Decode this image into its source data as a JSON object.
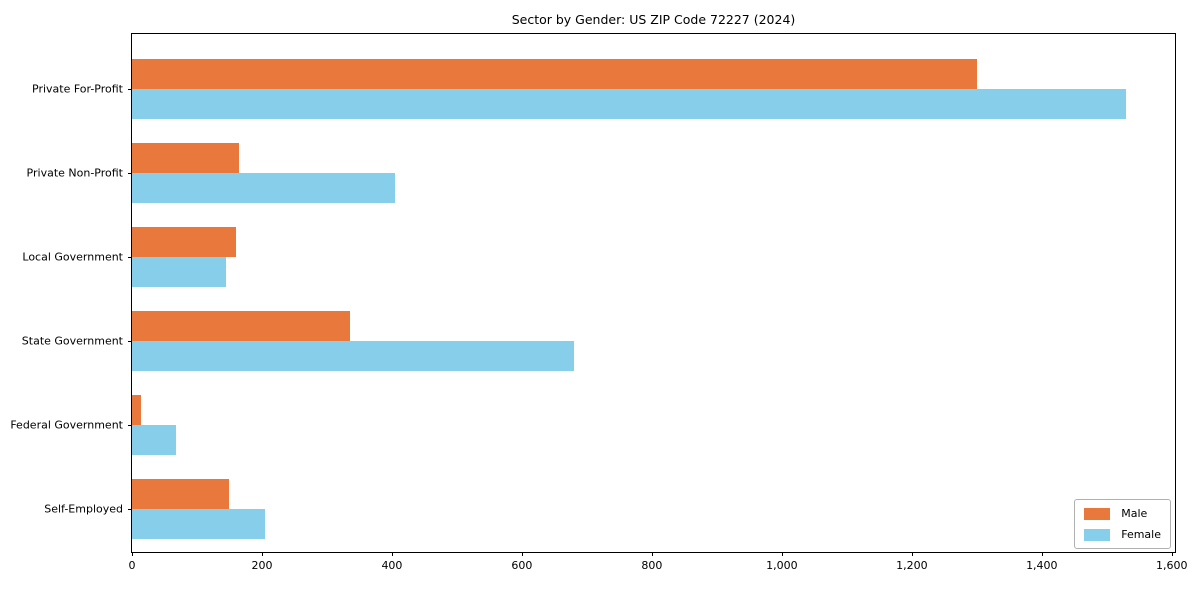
{
  "chart_data": {
    "type": "bar",
    "orientation": "horizontal",
    "title": "Sector by Gender: US ZIP Code 72227 (2024)",
    "xlabel": "",
    "ylabel": "",
    "categories": [
      "Private For-Profit",
      "Private Non-Profit",
      "Local Government",
      "State Government",
      "Federal Government",
      "Self-Employed"
    ],
    "series": [
      {
        "name": "Male",
        "color": "#E8783C",
        "values": [
          1300,
          165,
          160,
          335,
          14,
          150
        ]
      },
      {
        "name": "Female",
        "color": "#87CEEB",
        "values": [
          1530,
          405,
          145,
          680,
          68,
          205
        ]
      }
    ],
    "xlim": [
      0,
      1608
    ],
    "xticks": [
      0,
      200,
      400,
      600,
      800,
      1000,
      1200,
      1400,
      1600
    ],
    "grid": false,
    "legend_position": "lower right"
  },
  "colors": {
    "male": "#E8783C",
    "female": "#87CEEB",
    "axis": "#000000",
    "legend_border": "#b0b0b0",
    "background": "#ffffff"
  }
}
